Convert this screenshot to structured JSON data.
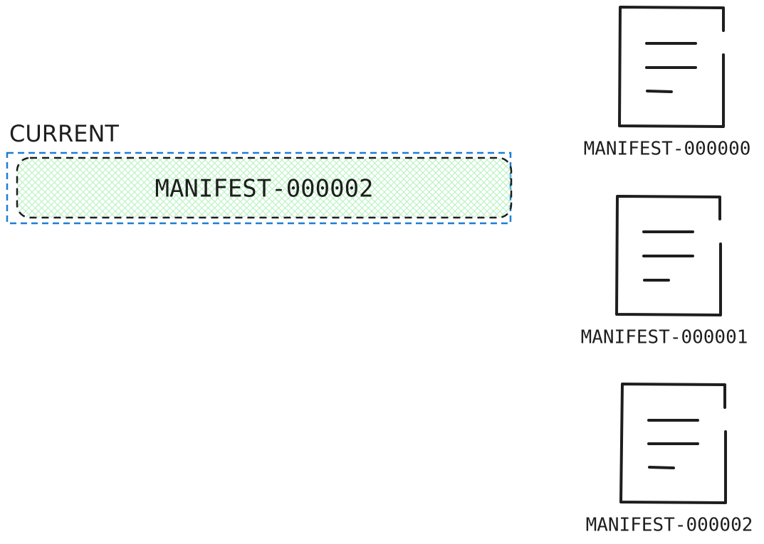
{
  "current": {
    "title": "CURRENT",
    "value": "MANIFEST-000002",
    "fill_color": "#b2f2bb",
    "border_color": "#1e1e1e",
    "selection_color": "#1c7ed6"
  },
  "files": [
    {
      "name": "MANIFEST-000000",
      "icon": "document-icon"
    },
    {
      "name": "MANIFEST-000001",
      "icon": "document-icon"
    },
    {
      "name": "MANIFEST-000002",
      "icon": "document-icon"
    }
  ]
}
